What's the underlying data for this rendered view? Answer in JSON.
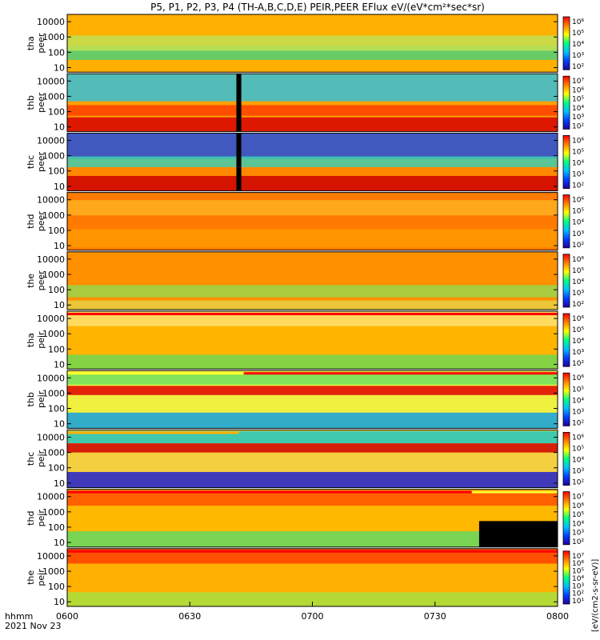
{
  "chart_data": {
    "type": "heatmap",
    "title": "P5, P1, P2, P3, P4 (TH-A,B,C,D,E) PEIR,PEER EFlux eV/(eV*cm²*sec*sr)",
    "x_tick_labels": [
      "0600",
      "0630",
      "0700",
      "0730",
      "0800"
    ],
    "x_ticks_hours": [
      6.0,
      6.5,
      7.0,
      7.5,
      8.0
    ],
    "xlim_hours": [
      6.0,
      8.0
    ],
    "x_label_line1": "hhmm",
    "x_label_line2": "2021 Nov 23",
    "y_tick_labels": [
      "10",
      "100",
      "1000",
      "10000"
    ],
    "y_ticks_eV": [
      10,
      100,
      1000,
      10000
    ],
    "ylim_eV": [
      5,
      30000
    ],
    "y_scale": "log",
    "colorbar_label": "[eV/(cm2-s-sr-eV)]",
    "panels": [
      {
        "name": "tha peer",
        "label1": "tha",
        "label2": "peer",
        "colorbar_ticks": [
          "10⁶",
          "10⁵",
          "10⁴",
          "10³",
          "10²"
        ],
        "bg": "#ffb000",
        "top_bar": [],
        "bands": [
          {
            "v": 90,
            "w": 0.45,
            "c": "#4cd17a"
          },
          {
            "v": 400,
            "w": 0.5,
            "c": "#c2e052"
          }
        ],
        "blocks": []
      },
      {
        "name": "thb peer",
        "label1": "thb",
        "label2": "peer",
        "colorbar_ticks": [
          "10⁷",
          "10⁶",
          "10⁵",
          "10⁴",
          "10³",
          "10²"
        ],
        "bg": "#ffa000",
        "top_bar": [],
        "bands": [
          {
            "v": 6000,
            "w": 1.1,
            "c": "#35c0d8"
          },
          {
            "v": 120,
            "w": 0.35,
            "c": "#ff4000"
          },
          {
            "v": 15,
            "w": 0.45,
            "c": "#d80000"
          }
        ],
        "blocks": [
          {
            "x0": 6.69,
            "x1": 6.71,
            "c": "#000000"
          }
        ]
      },
      {
        "name": "thc peer",
        "label1": "thc",
        "label2": "peer",
        "colorbar_ticks": [
          "10⁶",
          "10⁵",
          "10⁴",
          "10³",
          "10²"
        ],
        "bg": "#ff8800",
        "top_bar": [],
        "bands": [
          {
            "v": 5000,
            "w": 0.9,
            "c": "#2050e0"
          },
          {
            "v": 400,
            "w": 0.35,
            "c": "#40d0b0"
          },
          {
            "v": 15,
            "w": 0.5,
            "c": "#cc0000"
          }
        ],
        "blocks": [
          {
            "x0": 6.69,
            "x1": 6.71,
            "c": "#000000"
          }
        ]
      },
      {
        "name": "thd peer",
        "label1": "thd",
        "label2": "peer",
        "colorbar_ticks": [
          "10⁶",
          "10⁵",
          "10⁴",
          "10³",
          "10²"
        ],
        "bg": "#ff7a00",
        "top_bar": [],
        "bands": [
          {
            "v": 3000,
            "w": 0.5,
            "c": "#ffb020"
          },
          {
            "v": 30,
            "w": 0.6,
            "c": "#ff9a00"
          }
        ],
        "blocks": []
      },
      {
        "name": "the peer",
        "label1": "the",
        "label2": "peer",
        "colorbar_ticks": [
          "10⁶",
          "10⁵",
          "10⁴",
          "10³",
          "10²"
        ],
        "bg": "#ff9000",
        "top_bar": [],
        "bands": [
          {
            "v": 80,
            "w": 0.4,
            "c": "#9ad64a"
          },
          {
            "v": 10,
            "w": 0.3,
            "c": "#e8d040"
          }
        ],
        "blocks": []
      },
      {
        "name": "tha peir",
        "label1": "tha",
        "label2": "peir",
        "colorbar_ticks": [
          "10⁶",
          "10⁵",
          "10⁴",
          "10³",
          "10²"
        ],
        "bg": "#ffb400",
        "top_bar": [
          {
            "x0": 6.0,
            "x1": 8.0,
            "c": "#ff0000"
          }
        ],
        "bands": [
          {
            "v": 12,
            "w": 0.55,
            "c": "#70d850"
          },
          {
            "v": 10000,
            "w": 0.5,
            "c": "#ffe070"
          }
        ],
        "blocks": []
      },
      {
        "name": "thb peir",
        "label1": "thb",
        "label2": "peir",
        "colorbar_ticks": [
          "10⁶",
          "10⁵",
          "10⁴",
          "10³",
          "10²"
        ],
        "bg": "#f0f040",
        "top_bar": [
          {
            "x0": 6.0,
            "x1": 6.72,
            "c": "#ffff30"
          },
          {
            "x0": 6.72,
            "x1": 8.0,
            "c": "#ff0000"
          }
        ],
        "bands": [
          {
            "v": 1500,
            "w": 0.3,
            "c": "#e00000"
          },
          {
            "v": 15,
            "w": 0.55,
            "c": "#10a0e0"
          },
          {
            "v": 9000,
            "w": 0.4,
            "c": "#70e060"
          }
        ],
        "blocks": []
      },
      {
        "name": "thc peir",
        "label1": "thc",
        "label2": "peir",
        "colorbar_ticks": [
          "10⁶",
          "10⁵",
          "10⁴",
          "10³",
          "10²"
        ],
        "bg": "#f4d040",
        "top_bar": [
          {
            "x0": 6.0,
            "x1": 6.7,
            "c": "#ffb000"
          }
        ],
        "bands": [
          {
            "v": 10000,
            "w": 0.4,
            "c": "#20c8c0"
          },
          {
            "v": 2000,
            "w": 0.3,
            "c": "#d00000"
          },
          {
            "v": 15,
            "w": 0.55,
            "c": "#2020d0"
          }
        ],
        "blocks": []
      },
      {
        "name": "thd peir",
        "label1": "thd",
        "label2": "peir",
        "colorbar_ticks": [
          "10⁷",
          "10⁶",
          "10⁵",
          "10⁴",
          "10³",
          "10²"
        ],
        "bg": "#ffb800",
        "top_bar": [
          {
            "x0": 6.0,
            "x1": 7.65,
            "c": "#ff0000"
          },
          {
            "x0": 7.65,
            "x1": 8.0,
            "c": "#ffff30"
          }
        ],
        "bands": [
          {
            "v": 15,
            "w": 0.55,
            "c": "#60d860"
          },
          {
            "v": 8000,
            "w": 0.5,
            "c": "#ff5000"
          }
        ],
        "blocks": [
          {
            "x0": 7.68,
            "x1": 8.0,
            "c": "#000000",
            "vtop": 250
          }
        ]
      },
      {
        "name": "the peir",
        "label1": "the",
        "label2": "peir",
        "colorbar_ticks": [
          "10⁷",
          "10⁶",
          "10⁵",
          "10⁴",
          "10³",
          "10²",
          "10¹"
        ],
        "bg": "#ffb000",
        "top_bar": [
          {
            "x0": 6.0,
            "x1": 8.0,
            "c": "#ff0000"
          }
        ],
        "bands": [
          {
            "v": 10000,
            "w": 0.5,
            "c": "#ff4000"
          },
          {
            "v": 15,
            "w": 0.45,
            "c": "#a8e040"
          }
        ],
        "blocks": []
      }
    ]
  }
}
